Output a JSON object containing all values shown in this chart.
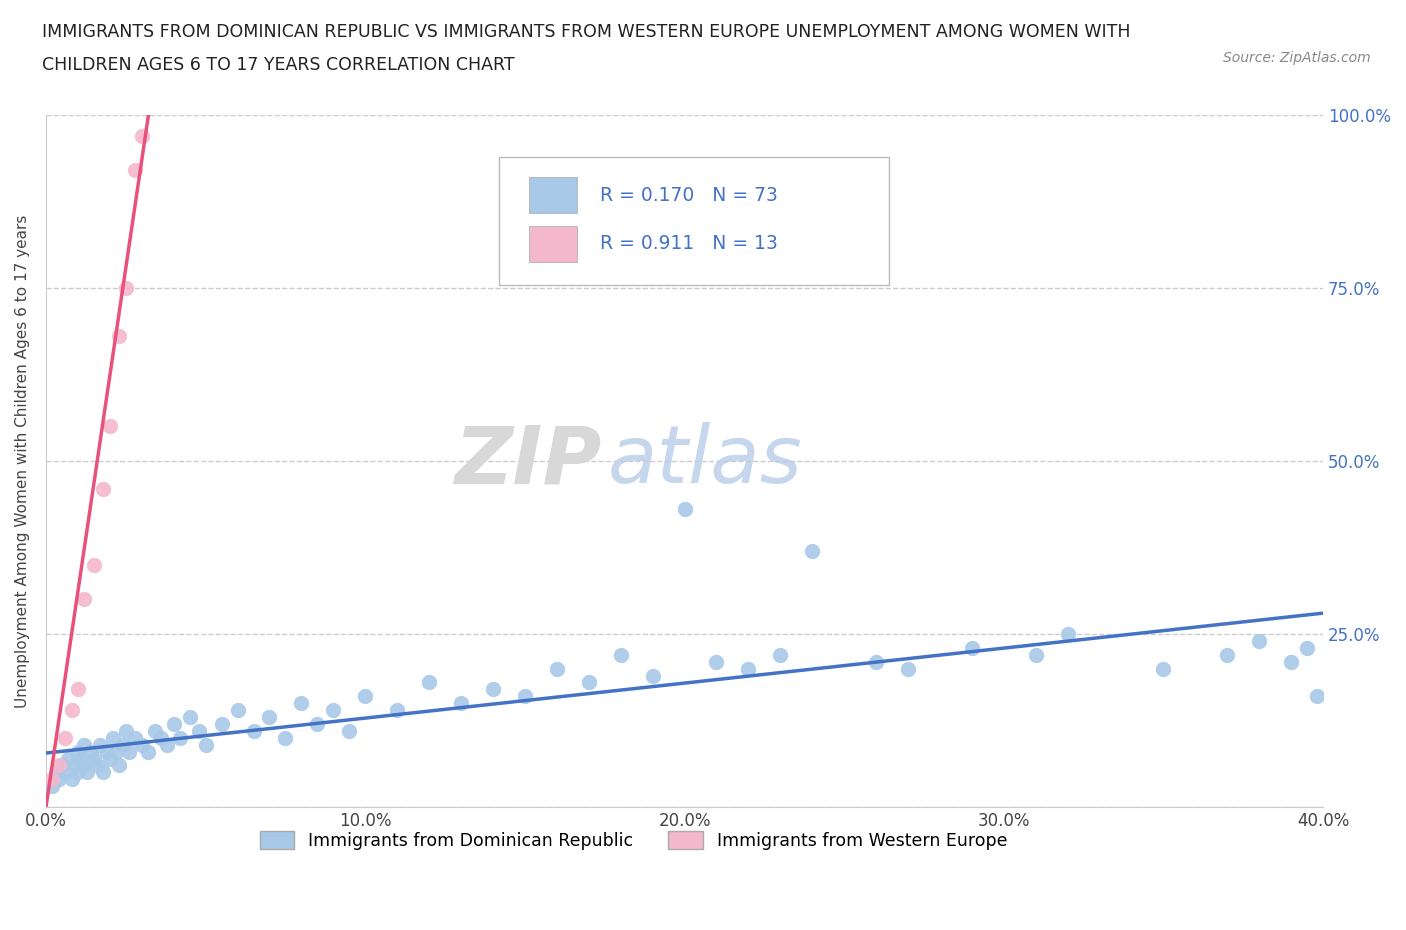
{
  "title_line1": "IMMIGRANTS FROM DOMINICAN REPUBLIC VS IMMIGRANTS FROM WESTERN EUROPE UNEMPLOYMENT AMONG WOMEN WITH",
  "title_line2": "CHILDREN AGES 6 TO 17 YEARS CORRELATION CHART",
  "source": "Source: ZipAtlas.com",
  "ylabel": "Unemployment Among Women with Children Ages 6 to 17 years",
  "r1": 0.17,
  "n1": 73,
  "r2": 0.911,
  "n2": 13,
  "color1": "#a8c8e8",
  "color2": "#f4b8cc",
  "line_color1": "#4472c4",
  "line_color2": "#e8527a",
  "xlim": [
    0.0,
    0.4
  ],
  "ylim": [
    0.0,
    1.0
  ],
  "xticks": [
    0.0,
    0.1,
    0.2,
    0.3,
    0.4
  ],
  "yticks": [
    0.0,
    0.25,
    0.5,
    0.75,
    1.0
  ],
  "xticklabels": [
    "0.0%",
    "10.0%",
    "20.0%",
    "30.0%",
    "40.0%"
  ],
  "right_yticklabels": [
    "",
    "25.0%",
    "50.0%",
    "75.0%",
    "100.0%"
  ],
  "legend1": "Immigrants from Dominican Republic",
  "legend2": "Immigrants from Western Europe",
  "watermark_zip": "ZIP",
  "watermark_atlas": "atlas",
  "blue_x": [
    0.002,
    0.003,
    0.004,
    0.005,
    0.006,
    0.007,
    0.008,
    0.009,
    0.01,
    0.01,
    0.011,
    0.012,
    0.012,
    0.013,
    0.014,
    0.015,
    0.016,
    0.017,
    0.018,
    0.019,
    0.02,
    0.021,
    0.022,
    0.023,
    0.024,
    0.025,
    0.026,
    0.028,
    0.03,
    0.032,
    0.034,
    0.036,
    0.038,
    0.04,
    0.042,
    0.045,
    0.048,
    0.05,
    0.055,
    0.06,
    0.065,
    0.07,
    0.075,
    0.08,
    0.085,
    0.09,
    0.095,
    0.1,
    0.11,
    0.12,
    0.13,
    0.14,
    0.15,
    0.16,
    0.17,
    0.18,
    0.19,
    0.2,
    0.21,
    0.22,
    0.23,
    0.24,
    0.26,
    0.27,
    0.29,
    0.31,
    0.32,
    0.35,
    0.37,
    0.38,
    0.39,
    0.395,
    0.398
  ],
  "blue_y": [
    0.03,
    0.05,
    0.04,
    0.06,
    0.05,
    0.07,
    0.04,
    0.06,
    0.08,
    0.05,
    0.07,
    0.06,
    0.09,
    0.05,
    0.08,
    0.07,
    0.06,
    0.09,
    0.05,
    0.08,
    0.07,
    0.1,
    0.08,
    0.06,
    0.09,
    0.11,
    0.08,
    0.1,
    0.09,
    0.08,
    0.11,
    0.1,
    0.09,
    0.12,
    0.1,
    0.13,
    0.11,
    0.09,
    0.12,
    0.14,
    0.11,
    0.13,
    0.1,
    0.15,
    0.12,
    0.14,
    0.11,
    0.16,
    0.14,
    0.18,
    0.15,
    0.17,
    0.16,
    0.2,
    0.18,
    0.22,
    0.19,
    0.43,
    0.21,
    0.2,
    0.22,
    0.37,
    0.21,
    0.2,
    0.23,
    0.22,
    0.25,
    0.2,
    0.22,
    0.24,
    0.21,
    0.23,
    0.16
  ],
  "pink_x": [
    0.002,
    0.004,
    0.006,
    0.008,
    0.01,
    0.012,
    0.015,
    0.018,
    0.02,
    0.023,
    0.025,
    0.028,
    0.03
  ],
  "pink_y": [
    0.04,
    0.06,
    0.1,
    0.14,
    0.17,
    0.3,
    0.35,
    0.46,
    0.55,
    0.68,
    0.75,
    0.92,
    0.97
  ]
}
